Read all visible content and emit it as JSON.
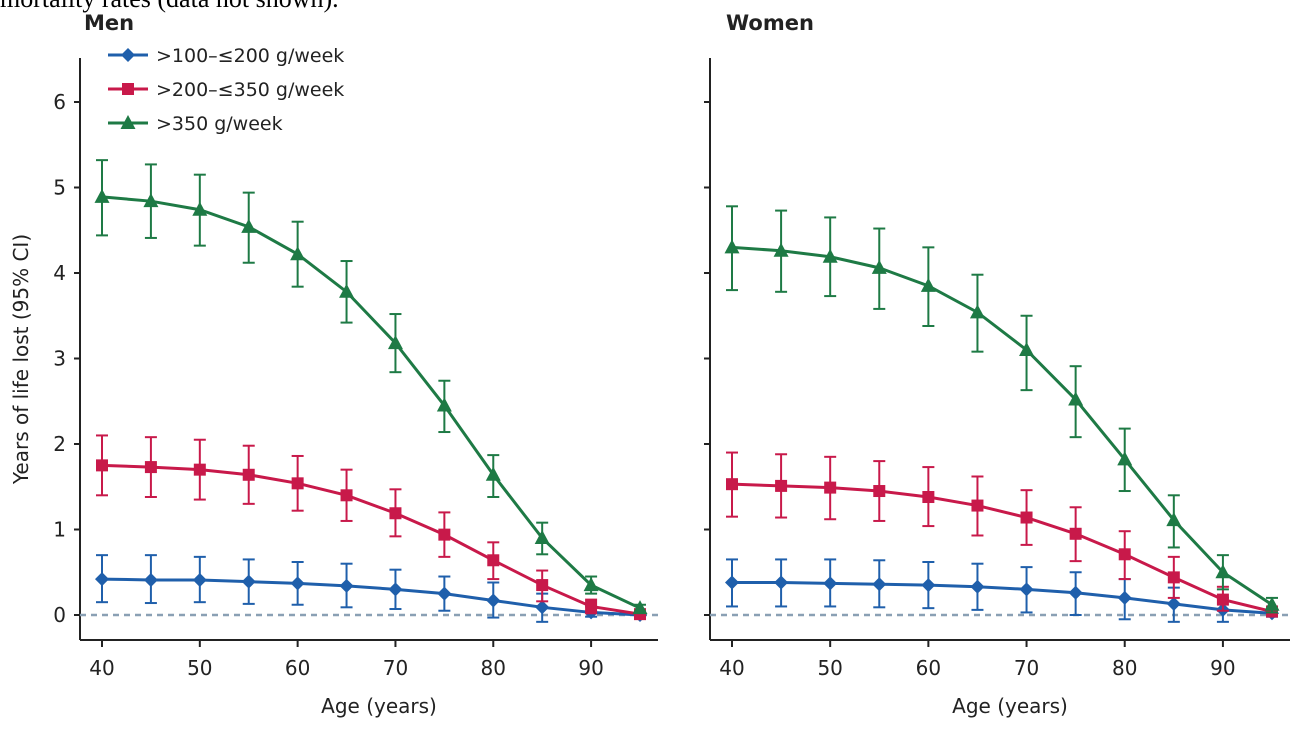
{
  "caption_fragment": "mortality rates (data not shown).",
  "colors": {
    "axis": "#222222",
    "reference_line": "#8aa0b4",
    "series": [
      "#1f5fab",
      "#c8194a",
      "#1e7a45"
    ]
  },
  "chart_data": [
    {
      "type": "line",
      "panel": "Men",
      "title": "Men",
      "xlabel": "Age (years)",
      "ylabel": "Years of life lost (95% CI)",
      "xlim": [
        38,
        97
      ],
      "ylim": [
        -0.4,
        6.5
      ],
      "x_ticks": [
        40,
        50,
        60,
        70,
        80,
        90
      ],
      "y_ticks": [
        0,
        1,
        2,
        3,
        4,
        5,
        6
      ],
      "reference_line": 0,
      "legend_position": "top-left",
      "x": [
        40,
        45,
        50,
        55,
        60,
        65,
        70,
        75,
        80,
        85,
        90,
        95
      ],
      "series": [
        {
          "name": ">100–≤200 g/week",
          "marker": "diamond",
          "values": [
            0.42,
            0.41,
            0.41,
            0.39,
            0.37,
            0.34,
            0.3,
            0.25,
            0.17,
            0.09,
            0.03,
            0.0
          ],
          "ci_low": [
            0.15,
            0.14,
            0.15,
            0.13,
            0.12,
            0.09,
            0.07,
            0.05,
            -0.03,
            -0.08,
            -0.02,
            -0.02
          ],
          "ci_high": [
            0.7,
            0.7,
            0.68,
            0.65,
            0.62,
            0.6,
            0.53,
            0.45,
            0.38,
            0.25,
            0.1,
            0.04
          ]
        },
        {
          "name": ">200–≤350 g/week",
          "marker": "square",
          "values": [
            1.75,
            1.73,
            1.7,
            1.64,
            1.54,
            1.4,
            1.19,
            0.94,
            0.64,
            0.35,
            0.1,
            0.01
          ],
          "ci_low": [
            1.4,
            1.38,
            1.35,
            1.3,
            1.22,
            1.1,
            0.92,
            0.68,
            0.42,
            0.16,
            0.02,
            -0.01
          ],
          "ci_high": [
            2.1,
            2.08,
            2.05,
            1.98,
            1.86,
            1.7,
            1.47,
            1.2,
            0.85,
            0.52,
            0.18,
            0.04
          ]
        },
        {
          "name": ">350 g/week",
          "marker": "triangle",
          "values": [
            4.89,
            4.84,
            4.74,
            4.54,
            4.22,
            3.78,
            3.18,
            2.45,
            1.64,
            0.9,
            0.35,
            0.08
          ],
          "ci_low": [
            4.44,
            4.41,
            4.32,
            4.12,
            3.84,
            3.42,
            2.84,
            2.14,
            1.38,
            0.71,
            0.25,
            0.04
          ],
          "ci_high": [
            5.32,
            5.27,
            5.15,
            4.94,
            4.6,
            4.14,
            3.52,
            2.74,
            1.87,
            1.08,
            0.45,
            0.12
          ]
        }
      ]
    },
    {
      "type": "line",
      "panel": "Women",
      "title": "Women",
      "xlabel": "Age (years)",
      "ylabel": "",
      "xlim": [
        38,
        97
      ],
      "ylim": [
        -0.4,
        6.5
      ],
      "x_ticks": [
        40,
        50,
        60,
        70,
        80,
        90
      ],
      "y_ticks": [
        0,
        1,
        2,
        3,
        4,
        5,
        6
      ],
      "reference_line": 0,
      "x": [
        40,
        45,
        50,
        55,
        60,
        65,
        70,
        75,
        80,
        85,
        90,
        95
      ],
      "series": [
        {
          "name": ">100–≤200 g/week",
          "marker": "diamond",
          "values": [
            0.38,
            0.38,
            0.37,
            0.36,
            0.35,
            0.33,
            0.3,
            0.26,
            0.2,
            0.13,
            0.06,
            0.02
          ],
          "ci_low": [
            0.1,
            0.1,
            0.1,
            0.09,
            0.08,
            0.06,
            0.03,
            0.0,
            -0.05,
            -0.08,
            -0.08,
            -0.02
          ],
          "ci_high": [
            0.65,
            0.65,
            0.65,
            0.64,
            0.62,
            0.6,
            0.56,
            0.5,
            0.42,
            0.32,
            0.2,
            0.08
          ]
        },
        {
          "name": ">200–≤350 g/week",
          "marker": "square",
          "values": [
            1.53,
            1.51,
            1.49,
            1.45,
            1.38,
            1.28,
            1.14,
            0.95,
            0.71,
            0.44,
            0.18,
            0.04
          ],
          "ci_low": [
            1.15,
            1.14,
            1.12,
            1.1,
            1.04,
            0.93,
            0.82,
            0.63,
            0.42,
            0.2,
            0.05,
            -0.01
          ],
          "ci_high": [
            1.9,
            1.88,
            1.85,
            1.8,
            1.73,
            1.62,
            1.46,
            1.26,
            0.98,
            0.68,
            0.33,
            0.1
          ]
        },
        {
          "name": ">350 g/week",
          "marker": "triangle",
          "values": [
            4.3,
            4.26,
            4.19,
            4.06,
            3.85,
            3.54,
            3.1,
            2.52,
            1.82,
            1.11,
            0.5,
            0.12
          ],
          "ci_low": [
            3.8,
            3.78,
            3.73,
            3.58,
            3.38,
            3.08,
            2.63,
            2.08,
            1.45,
            0.79,
            0.3,
            0.03
          ],
          "ci_high": [
            4.78,
            4.73,
            4.65,
            4.52,
            4.3,
            3.98,
            3.5,
            2.91,
            2.18,
            1.4,
            0.7,
            0.2
          ]
        }
      ]
    }
  ]
}
